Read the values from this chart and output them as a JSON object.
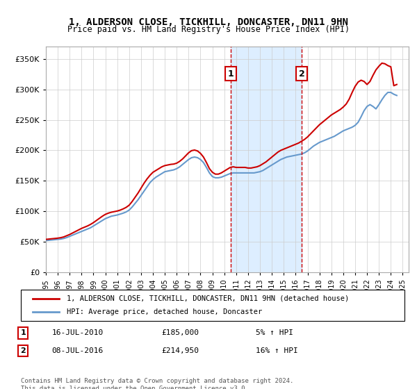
{
  "title": "1, ALDERSON CLOSE, TICKHILL, DONCASTER, DN11 9HN",
  "subtitle": "Price paid vs. HM Land Registry's House Price Index (HPI)",
  "ylabel_ticks": [
    "£0",
    "£50K",
    "£100K",
    "£150K",
    "£200K",
    "£250K",
    "£300K",
    "£350K"
  ],
  "ytick_values": [
    0,
    50000,
    100000,
    150000,
    200000,
    250000,
    300000,
    350000
  ],
  "ylim": [
    0,
    370000
  ],
  "xlim_start": 1995,
  "xlim_end": 2025.5,
  "x_ticks": [
    1995,
    1996,
    1997,
    1998,
    1999,
    2000,
    2001,
    2002,
    2003,
    2004,
    2005,
    2006,
    2007,
    2008,
    2009,
    2010,
    2011,
    2012,
    2013,
    2014,
    2015,
    2016,
    2017,
    2018,
    2019,
    2020,
    2021,
    2022,
    2023,
    2024,
    2025
  ],
  "transaction1_x": 2010.537,
  "transaction1_y": 185000,
  "transaction1_label": "1",
  "transaction2_x": 2016.521,
  "transaction2_y": 214950,
  "transaction2_label": "2",
  "shaded_region_start": 2010.537,
  "shaded_region_end": 2016.521,
  "hpi_color": "#6699cc",
  "price_color": "#cc0000",
  "dashed_color": "#cc0000",
  "shaded_color": "#ddeeff",
  "legend_label1": "1, ALDERSON CLOSE, TICKHILL, DONCASTER, DN11 9HN (detached house)",
  "legend_label2": "HPI: Average price, detached house, Doncaster",
  "note1_num": "1",
  "note1_date": "16-JUL-2010",
  "note1_price": "£185,000",
  "note1_hpi": "5% ↑ HPI",
  "note2_num": "2",
  "note2_date": "08-JUL-2016",
  "note2_price": "£214,950",
  "note2_hpi": "16% ↑ HPI",
  "footer": "Contains HM Land Registry data © Crown copyright and database right 2024.\nThis data is licensed under the Open Government Licence v3.0.",
  "hpi_data_x": [
    1995,
    1995.25,
    1995.5,
    1995.75,
    1996,
    1996.25,
    1996.5,
    1996.75,
    1997,
    1997.25,
    1997.5,
    1997.75,
    1998,
    1998.25,
    1998.5,
    1998.75,
    1999,
    1999.25,
    1999.5,
    1999.75,
    2000,
    2000.25,
    2000.5,
    2000.75,
    2001,
    2001.25,
    2001.5,
    2001.75,
    2002,
    2002.25,
    2002.5,
    2002.75,
    2003,
    2003.25,
    2003.5,
    2003.75,
    2004,
    2004.25,
    2004.5,
    2004.75,
    2005,
    2005.25,
    2005.5,
    2005.75,
    2006,
    2006.25,
    2006.5,
    2006.75,
    2007,
    2007.25,
    2007.5,
    2007.75,
    2008,
    2008.25,
    2008.5,
    2008.75,
    2009,
    2009.25,
    2009.5,
    2009.75,
    2010,
    2010.25,
    2010.5,
    2010.75,
    2011,
    2011.25,
    2011.5,
    2011.75,
    2012,
    2012.25,
    2012.5,
    2012.75,
    2013,
    2013.25,
    2013.5,
    2013.75,
    2014,
    2014.25,
    2014.5,
    2014.75,
    2015,
    2015.25,
    2015.5,
    2015.75,
    2016,
    2016.25,
    2016.5,
    2016.75,
    2017,
    2017.25,
    2017.5,
    2017.75,
    2018,
    2018.25,
    2018.5,
    2018.75,
    2019,
    2019.25,
    2019.5,
    2019.75,
    2020,
    2020.25,
    2020.5,
    2020.75,
    2021,
    2021.25,
    2021.5,
    2021.75,
    2022,
    2022.25,
    2022.5,
    2022.75,
    2023,
    2023.25,
    2023.5,
    2023.75,
    2024,
    2024.25,
    2024.5
  ],
  "hpi_data_y": [
    52000,
    52500,
    53000,
    53500,
    54000,
    54500,
    55500,
    57000,
    59000,
    61000,
    63000,
    65000,
    67000,
    69000,
    71000,
    73000,
    76000,
    79000,
    82000,
    85000,
    88000,
    90000,
    92000,
    93000,
    94000,
    95500,
    97000,
    99000,
    102000,
    107000,
    113000,
    119000,
    126000,
    133000,
    140000,
    147000,
    152000,
    156000,
    159000,
    162000,
    165000,
    166000,
    167000,
    168000,
    170000,
    173000,
    177000,
    181000,
    185000,
    188000,
    189000,
    188000,
    185000,
    180000,
    172000,
    163000,
    157000,
    155000,
    155000,
    156000,
    158000,
    160000,
    162000,
    163000,
    163000,
    163000,
    163000,
    163000,
    163000,
    163000,
    163000,
    164000,
    165000,
    167000,
    170000,
    173000,
    176000,
    179000,
    182000,
    185000,
    187000,
    189000,
    190000,
    191000,
    192000,
    193000,
    194000,
    196000,
    199000,
    203000,
    207000,
    210000,
    213000,
    215000,
    217000,
    219000,
    221000,
    223000,
    226000,
    229000,
    232000,
    234000,
    236000,
    238000,
    241000,
    246000,
    255000,
    265000,
    272000,
    275000,
    272000,
    268000,
    275000,
    283000,
    290000,
    295000,
    295000,
    292000,
    290000
  ],
  "price_data_x": [
    1995,
    1995.25,
    1995.5,
    1995.75,
    1996,
    1996.25,
    1996.5,
    1996.75,
    1997,
    1997.25,
    1997.5,
    1997.75,
    1998,
    1998.25,
    1998.5,
    1998.75,
    1999,
    1999.25,
    1999.5,
    1999.75,
    2000,
    2000.25,
    2000.5,
    2000.75,
    2001,
    2001.25,
    2001.5,
    2001.75,
    2002,
    2002.25,
    2002.5,
    2002.75,
    2003,
    2003.25,
    2003.5,
    2003.75,
    2004,
    2004.25,
    2004.5,
    2004.75,
    2005,
    2005.25,
    2005.5,
    2005.75,
    2006,
    2006.25,
    2006.5,
    2006.75,
    2007,
    2007.25,
    2007.5,
    2007.75,
    2008,
    2008.25,
    2008.5,
    2008.75,
    2009,
    2009.25,
    2009.5,
    2009.75,
    2010,
    2010.25,
    2010.5,
    2010.75,
    2011,
    2011.25,
    2011.5,
    2011.75,
    2012,
    2012.25,
    2012.5,
    2012.75,
    2013,
    2013.25,
    2013.5,
    2013.75,
    2014,
    2014.25,
    2014.5,
    2014.75,
    2015,
    2015.25,
    2015.5,
    2015.75,
    2016,
    2016.25,
    2016.5,
    2016.75,
    2017,
    2017.25,
    2017.5,
    2017.75,
    2018,
    2018.25,
    2018.5,
    2018.75,
    2019,
    2019.25,
    2019.5,
    2019.75,
    2020,
    2020.25,
    2020.5,
    2020.75,
    2021,
    2021.25,
    2021.5,
    2021.75,
    2022,
    2022.25,
    2022.5,
    2022.75,
    2023,
    2023.25,
    2023.5,
    2023.75,
    2024,
    2024.25,
    2024.5
  ],
  "price_data_y": [
    54000,
    54500,
    55000,
    55500,
    56000,
    56800,
    58000,
    60000,
    62000,
    64500,
    67000,
    69500,
    72000,
    74000,
    76000,
    78500,
    81500,
    85000,
    88500,
    92000,
    95000,
    97000,
    98500,
    99500,
    100500,
    102000,
    104000,
    106500,
    110000,
    116000,
    123000,
    130000,
    138000,
    146000,
    153000,
    159000,
    164000,
    167000,
    170000,
    173000,
    175000,
    176000,
    177000,
    177500,
    179000,
    182000,
    186000,
    191000,
    196000,
    199500,
    200500,
    199000,
    195000,
    189000,
    180000,
    170000,
    164000,
    161000,
    161000,
    163000,
    166000,
    169000,
    172000,
    173000,
    172000,
    172000,
    172000,
    172000,
    171000,
    171000,
    172000,
    173000,
    175000,
    178000,
    181000,
    185000,
    189000,
    193000,
    197000,
    200000,
    202000,
    204000,
    206000,
    208000,
    210000,
    212000,
    215000,
    218000,
    222000,
    227000,
    232000,
    237000,
    242000,
    246000,
    250000,
    254000,
    258000,
    261000,
    264000,
    267000,
    271000,
    276000,
    284000,
    295000,
    305000,
    312000,
    315000,
    313000,
    308000,
    313000,
    323000,
    332000,
    338000,
    343000,
    342000,
    339000,
    337000,
    306000,
    308000
  ]
}
